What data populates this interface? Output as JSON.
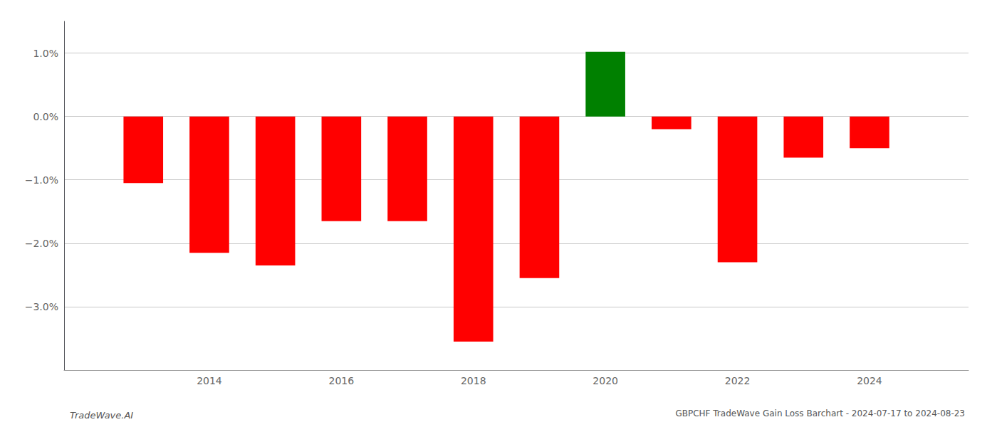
{
  "chart_data": {
    "type": "bar",
    "title": "GBPCHF TradeWave Gain Loss Barchart - 2024-07-17 to 2024-08-23",
    "annotations": [
      "TradeWave.AI"
    ],
    "x": [
      2013,
      2014,
      2015,
      2016,
      2017,
      2018,
      2019,
      2020,
      2021,
      2022,
      2023,
      2024
    ],
    "values": [
      -1.05,
      -2.15,
      -2.35,
      -1.65,
      -1.65,
      -3.55,
      -2.55,
      1.02,
      -0.2,
      -2.3,
      -0.65,
      -0.5
    ],
    "colors": [
      "#ff0000",
      "#ff0000",
      "#ff0000",
      "#ff0000",
      "#ff0000",
      "#ff0000",
      "#ff0000",
      "#008000",
      "#ff0000",
      "#ff0000",
      "#ff0000",
      "#ff0000"
    ],
    "xlim": [
      2011.8,
      2025.5
    ],
    "xticks": [
      2014,
      2016,
      2018,
      2020,
      2022,
      2024
    ],
    "ylim": [
      -4.0,
      1.5
    ],
    "yticks": [
      {
        "value": 1.0,
        "label": "1.0%"
      },
      {
        "value": 0.0,
        "label": "0.0%"
      },
      {
        "value": -1.0,
        "label": "−1.0%"
      },
      {
        "value": -2.0,
        "label": "−2.0%"
      },
      {
        "value": -3.0,
        "label": "−3.0%"
      }
    ],
    "grid": true
  }
}
